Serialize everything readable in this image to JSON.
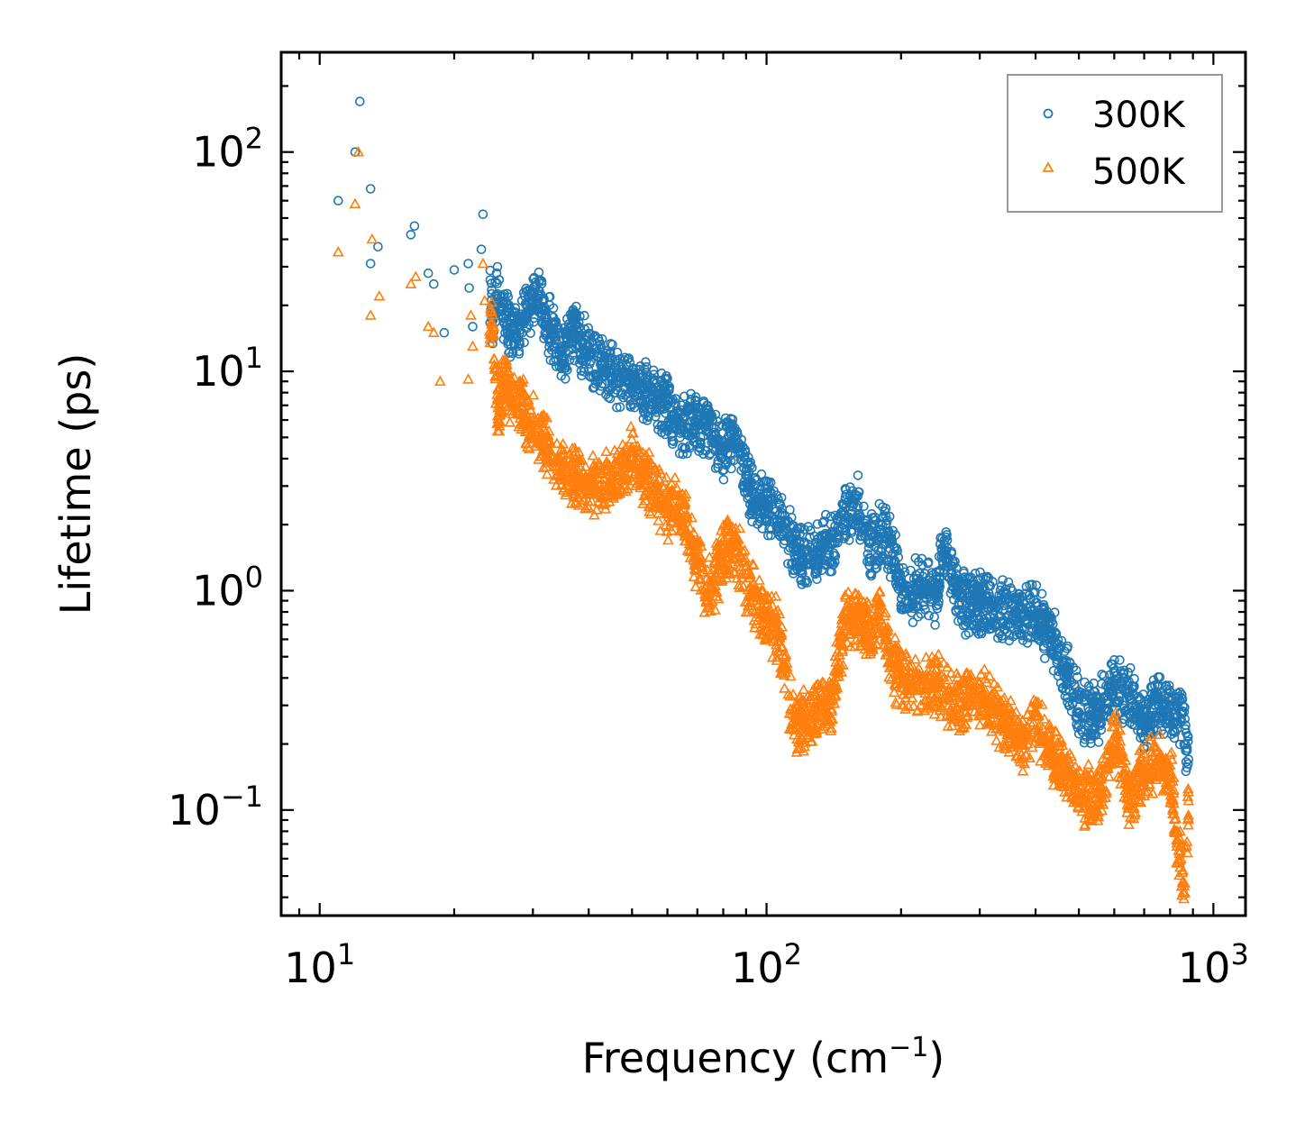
{
  "chart_data": {
    "type": "scatter",
    "xscale": "log",
    "yscale": "log",
    "xlabel": "Frequency (cm",
    "xlabel_sup": "−1",
    "xlabel_close": ")",
    "ylabel": "Lifetime (ps)",
    "xlim": [
      8.2,
      1180
    ],
    "ylim": [
      0.033,
      285
    ],
    "xticks": [
      {
        "base": "10",
        "exp": "1",
        "value": 10
      },
      {
        "base": "10",
        "exp": "2",
        "value": 100
      },
      {
        "base": "10",
        "exp": "3",
        "value": 1000
      }
    ],
    "yticks": [
      {
        "base": "10",
        "exp": "−1",
        "value": 0.1
      },
      {
        "base": "10",
        "exp": "0",
        "value": 1
      },
      {
        "base": "10",
        "exp": "1",
        "value": 10
      },
      {
        "base": "10",
        "exp": "2",
        "value": 100
      }
    ],
    "legend_position": "top-right",
    "series": [
      {
        "name": "300K",
        "marker": "circle",
        "color": "#1f77b4",
        "anchor_points": [
          [
            11,
            60
          ],
          [
            12,
            100
          ],
          [
            12.3,
            170
          ],
          [
            13,
            68
          ],
          [
            13,
            31
          ],
          [
            13.5,
            37
          ],
          [
            16,
            42
          ],
          [
            16.3,
            46
          ],
          [
            17.5,
            28
          ],
          [
            18,
            25
          ],
          [
            19,
            15
          ],
          [
            20,
            29
          ],
          [
            21.5,
            31
          ],
          [
            21.6,
            24
          ],
          [
            22,
            16
          ],
          [
            23,
            36
          ],
          [
            23.2,
            52
          ],
          [
            24.5,
            18
          ],
          [
            25,
            30
          ],
          [
            25.5,
            22
          ],
          [
            27,
            16
          ],
          [
            29,
            20
          ],
          [
            31,
            26
          ],
          [
            32,
            19
          ],
          [
            35,
            13
          ],
          [
            37,
            17.5
          ],
          [
            38,
            15
          ],
          [
            40,
            13
          ],
          [
            43,
            11
          ],
          [
            47,
            10.5
          ],
          [
            50,
            9.5
          ],
          [
            55,
            8.5
          ],
          [
            60,
            7.5
          ],
          [
            65,
            6.2
          ],
          [
            70,
            6
          ],
          [
            74,
            6.3
          ],
          [
            80,
            4.8
          ],
          [
            85,
            5.5
          ],
          [
            90,
            3.5
          ],
          [
            95,
            2.8
          ],
          [
            100,
            2.8
          ],
          [
            105,
            2.3
          ],
          [
            110,
            2.2
          ],
          [
            115,
            1.7
          ],
          [
            120,
            1.55
          ],
          [
            130,
            1.6
          ],
          [
            140,
            1.8
          ],
          [
            150,
            2.6
          ],
          [
            160,
            2.7
          ],
          [
            170,
            1.7
          ],
          [
            180,
            2.0
          ],
          [
            190,
            1.8
          ],
          [
            200,
            1.1
          ],
          [
            210,
            1.0
          ],
          [
            220,
            1.2
          ],
          [
            240,
            1.05
          ],
          [
            250,
            1.7
          ],
          [
            270,
            1.0
          ],
          [
            300,
            0.95
          ],
          [
            330,
            0.9
          ],
          [
            370,
            0.85
          ],
          [
            400,
            0.88
          ],
          [
            430,
            0.7
          ],
          [
            470,
            0.45
          ],
          [
            500,
            0.32
          ],
          [
            550,
            0.3
          ],
          [
            600,
            0.42
          ],
          [
            650,
            0.35
          ],
          [
            700,
            0.28
          ],
          [
            750,
            0.33
          ],
          [
            800,
            0.3
          ],
          [
            860,
            0.28
          ],
          [
            880,
            0.17
          ]
        ]
      },
      {
        "name": "500K",
        "marker": "triangle",
        "color": "#ff7f0e",
        "anchor_points": [
          [
            11,
            35
          ],
          [
            12,
            58
          ],
          [
            12.2,
            100
          ],
          [
            13,
            18
          ],
          [
            13.1,
            40
          ],
          [
            13.6,
            22
          ],
          [
            16,
            25
          ],
          [
            16.4,
            27
          ],
          [
            17.5,
            16
          ],
          [
            18,
            15
          ],
          [
            18.6,
            9
          ],
          [
            21.5,
            9.2
          ],
          [
            21.8,
            18
          ],
          [
            22,
            13
          ],
          [
            23.2,
            31
          ],
          [
            23.4,
            21
          ],
          [
            24.5,
            16
          ],
          [
            25,
            7.5
          ],
          [
            26,
            9.5
          ],
          [
            28,
            8
          ],
          [
            30,
            6
          ],
          [
            32,
            5
          ],
          [
            35,
            3.8
          ],
          [
            38,
            3.5
          ],
          [
            40,
            3.2
          ],
          [
            45,
            3.5
          ],
          [
            50,
            4.5
          ],
          [
            55,
            3.2
          ],
          [
            60,
            2.6
          ],
          [
            65,
            2.5
          ],
          [
            70,
            1.4
          ],
          [
            75,
            1.1
          ],
          [
            80,
            1.6
          ],
          [
            85,
            1.8
          ],
          [
            90,
            1.2
          ],
          [
            95,
            1.0
          ],
          [
            100,
            0.8
          ],
          [
            105,
            0.75
          ],
          [
            110,
            0.5
          ],
          [
            115,
            0.27
          ],
          [
            120,
            0.28
          ],
          [
            130,
            0.32
          ],
          [
            140,
            0.35
          ],
          [
            150,
            0.8
          ],
          [
            160,
            0.85
          ],
          [
            170,
            0.7
          ],
          [
            180,
            0.85
          ],
          [
            190,
            0.5
          ],
          [
            200,
            0.45
          ],
          [
            210,
            0.42
          ],
          [
            240,
            0.4
          ],
          [
            270,
            0.34
          ],
          [
            300,
            0.38
          ],
          [
            330,
            0.3
          ],
          [
            370,
            0.22
          ],
          [
            400,
            0.28
          ],
          [
            430,
            0.2
          ],
          [
            470,
            0.16
          ],
          [
            500,
            0.13
          ],
          [
            550,
            0.12
          ],
          [
            600,
            0.24
          ],
          [
            650,
            0.12
          ],
          [
            700,
            0.18
          ],
          [
            750,
            0.17
          ],
          [
            800,
            0.16
          ],
          [
            860,
            0.045
          ],
          [
            880,
            0.11
          ]
        ]
      }
    ]
  }
}
